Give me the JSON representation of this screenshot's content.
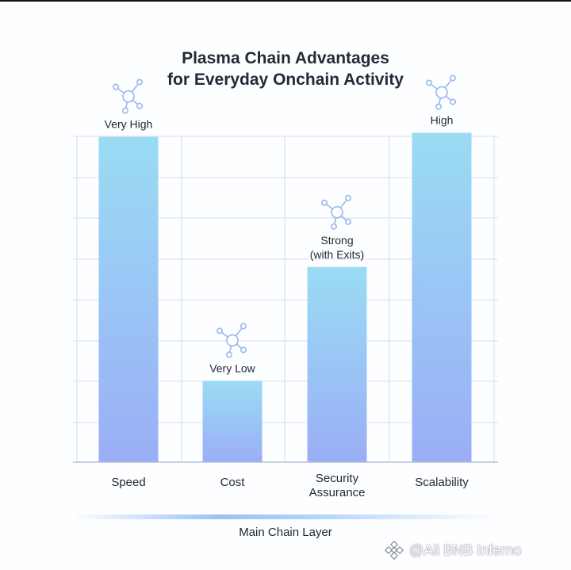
{
  "title_line1": "Plasma Chain Advantages",
  "title_line2": "for Everyday Onchain Activity",
  "footer_label": "Main Chain Layer",
  "watermark": "@Ali BNB Inferno",
  "colors": {
    "bar_top": "#9adcf4",
    "bar_bottom": "#9aaef6",
    "grid": "#dfe3f2",
    "icon": "#9ab7ec"
  },
  "chart_data": {
    "type": "bar",
    "categories": [
      "Speed",
      "Cost",
      "Security Assurance",
      "Scalability"
    ],
    "values": [
      0.8,
      0.2,
      0.48,
      0.81
    ],
    "value_labels": [
      "Very High",
      "Very Low",
      "Strong (with Exits)",
      "High"
    ],
    "category_label_lines": [
      [
        "Speed"
      ],
      [
        "Cost"
      ],
      [
        "Security",
        "Assurance"
      ],
      [
        "Scalability"
      ]
    ],
    "value_label_lines": [
      [
        "Very High"
      ],
      [
        "Very Low"
      ],
      [
        "Strong",
        "(with Exits)"
      ],
      [
        "High"
      ]
    ],
    "icon": "network-node-icon",
    "grid": true,
    "ylim": [
      0,
      1
    ]
  }
}
